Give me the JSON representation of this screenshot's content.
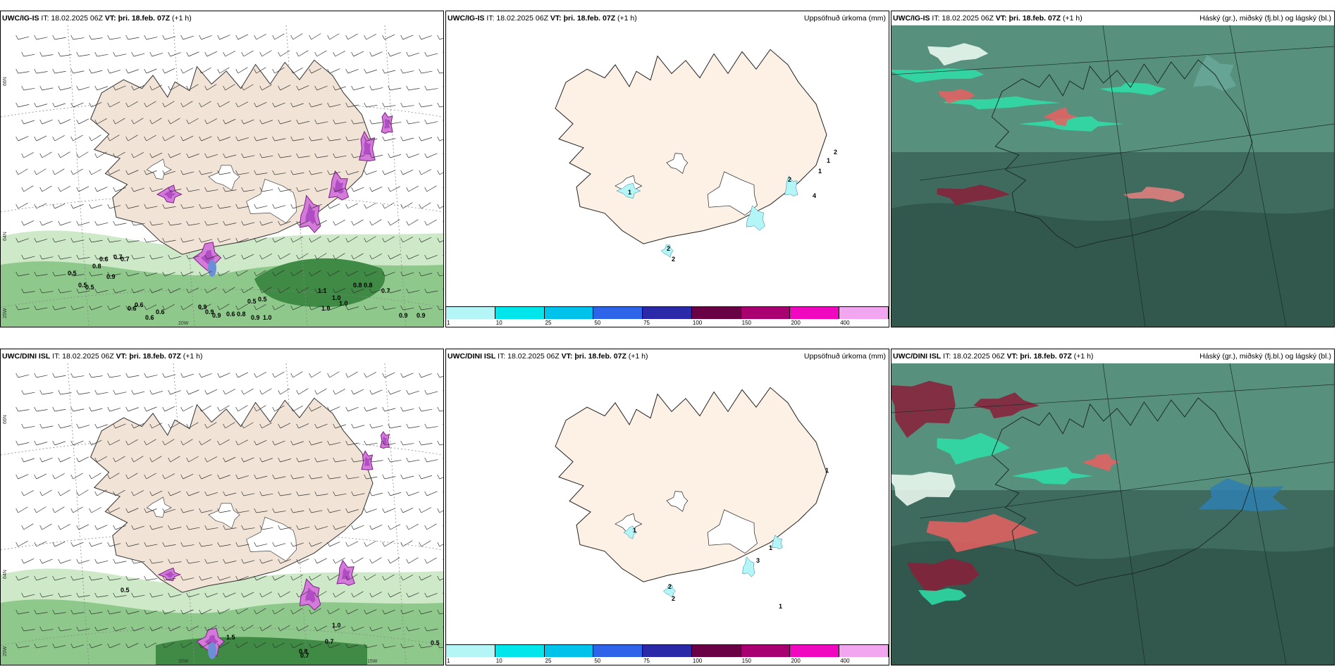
{
  "panels": [
    {
      "model": "UWC/IG-IS",
      "it": "IT: 18.02.2025 06Z",
      "vt": "VT: þri. 18.feb. 07Z",
      "lead": "(+1 h)",
      "right": ""
    },
    {
      "model": "UWC/IG-IS",
      "it": "IT: 18.02.2025 06Z",
      "vt": "VT: þri. 18.feb. 07Z",
      "lead": "(+1 h)",
      "right": "Uppsöfnuð úrkoma (mm)"
    },
    {
      "model": "UWC/IG-IS",
      "it": "IT: 18.02.2025 06Z",
      "vt": "VT: þri. 18.feb. 07Z",
      "lead": "(+1 h)",
      "right": "Háský (gr.), miðský (fj.bl.) og lágský (bl.)"
    },
    {
      "model": "UWC/DINI ISL",
      "it": "IT: 18.02.2025 06Z",
      "vt": "VT: þri. 18.feb. 07Z",
      "lead": "(+1 h)",
      "right": ""
    },
    {
      "model": "UWC/DINI ISL",
      "it": "IT: 18.02.2025 06Z",
      "vt": "VT: þri. 18.feb. 07Z",
      "lead": "(+1 h)",
      "right": "Uppsöfnuð úrkoma (mm)"
    },
    {
      "model": "UWC/DINI ISL",
      "it": "IT: 18.02.2025 06Z",
      "vt": "VT: þri. 18.feb. 07Z",
      "lead": "(+1 h)",
      "right": "Háský (gr.), miðský (fj.bl.) og lágský (bl.)"
    }
  ],
  "axes": {
    "lat_label": "66N",
    "lat_label2": "64N",
    "lon_label": "25W",
    "lon_label2": "20W",
    "lon_label3": "15W"
  },
  "colorbar": {
    "ticks": [
      "1",
      "10",
      "25",
      "50",
      "75",
      "100",
      "150",
      "200",
      "400"
    ],
    "colors": [
      "#b4f5f7",
      "#00e6ea",
      "#00c2ea",
      "#2e64e8",
      "#2a2aa8",
      "#6a0046",
      "#a80070",
      "#ef08c0",
      "#f2a6f0"
    ]
  },
  "precip_labels_top": [
    "1",
    "2",
    "1",
    "2",
    "1",
    "4",
    "2",
    "2"
  ],
  "precip_labels_bot": [
    "1",
    "1",
    "1",
    "3",
    "2",
    "2",
    "1"
  ],
  "wind_labels_top": [
    "0.6",
    "0.7",
    "0.5",
    "0.8",
    "0.5",
    "0.5",
    "0.9",
    "0.7",
    "0.6",
    "0.6",
    "0.6",
    "0.6",
    "0.9",
    "0.9",
    "0.9",
    "0.6",
    "0.8",
    "0.9",
    "1.0",
    "1.1",
    "1.0",
    "1.0",
    "1.0",
    "0.5",
    "0.5",
    "0.8",
    "0.8",
    "0.7",
    "0.9",
    "0.9"
  ],
  "wind_labels_bot": [
    "0.5",
    "1.0",
    "0.7",
    "0.7",
    "0.8",
    "0.5",
    "1.5"
  ]
}
